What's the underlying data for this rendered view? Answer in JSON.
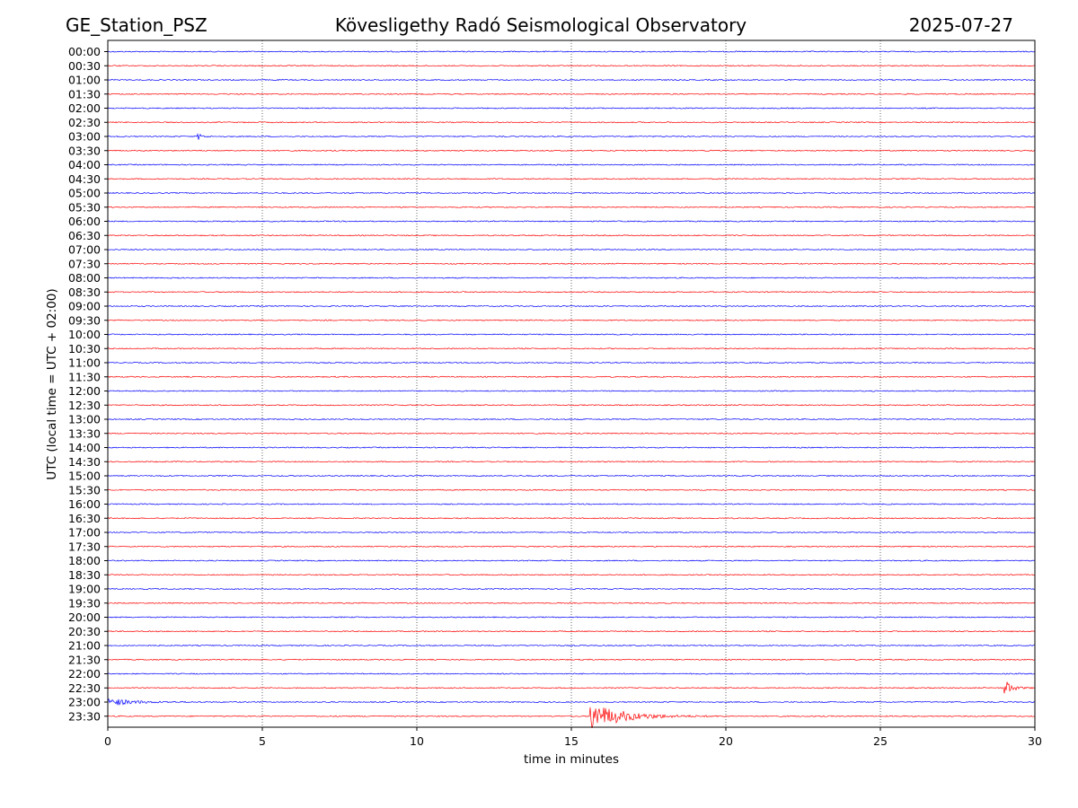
{
  "header": {
    "station": "GE_Station_PSZ",
    "observatory": "Kövesligethy Radó Seismological Observatory",
    "date": "2025-07-27"
  },
  "chart_data": {
    "type": "line",
    "subtype": "helicorder",
    "title": "Kövesligethy Radó Seismological Observatory",
    "xlabel": "time in minutes",
    "ylabel": "UTC (local time = UTC + 02:00)",
    "xlim": [
      0,
      30
    ],
    "x_ticks": [
      0,
      5,
      10,
      15,
      20,
      25,
      30
    ],
    "x_grid": true,
    "grid_style": "dotted",
    "traces_per_hour": 2,
    "row_labels": [
      "00:00",
      "00:30",
      "01:00",
      "01:30",
      "02:00",
      "02:30",
      "03:00",
      "03:30",
      "04:00",
      "04:30",
      "05:00",
      "05:30",
      "06:00",
      "06:30",
      "07:00",
      "07:30",
      "08:00",
      "08:30",
      "09:00",
      "09:30",
      "10:00",
      "10:30",
      "11:00",
      "11:30",
      "12:00",
      "12:30",
      "13:00",
      "13:30",
      "14:00",
      "14:30",
      "15:00",
      "15:30",
      "16:00",
      "16:30",
      "17:00",
      "17:30",
      "18:00",
      "18:30",
      "19:00",
      "19:30",
      "20:00",
      "20:30",
      "21:00",
      "21:30",
      "22:00",
      "22:30",
      "23:00",
      "23:30"
    ],
    "trace_colors": [
      "#0000ff",
      "#ff0000"
    ],
    "events": [
      {
        "row": "03:00",
        "start_min": 2.9,
        "end_min": 3.5,
        "peak_amplitude": 0.45
      },
      {
        "row": "22:30",
        "start_min": 29.0,
        "end_min": 30.0,
        "peak_amplitude": 1.0
      },
      {
        "row": "23:00",
        "start_min": 0.0,
        "end_min": 3.2,
        "peak_amplitude": 0.45
      },
      {
        "row": "23:30",
        "start_min": 15.6,
        "end_min": 20.0,
        "peak_amplitude": 1.6
      }
    ]
  }
}
